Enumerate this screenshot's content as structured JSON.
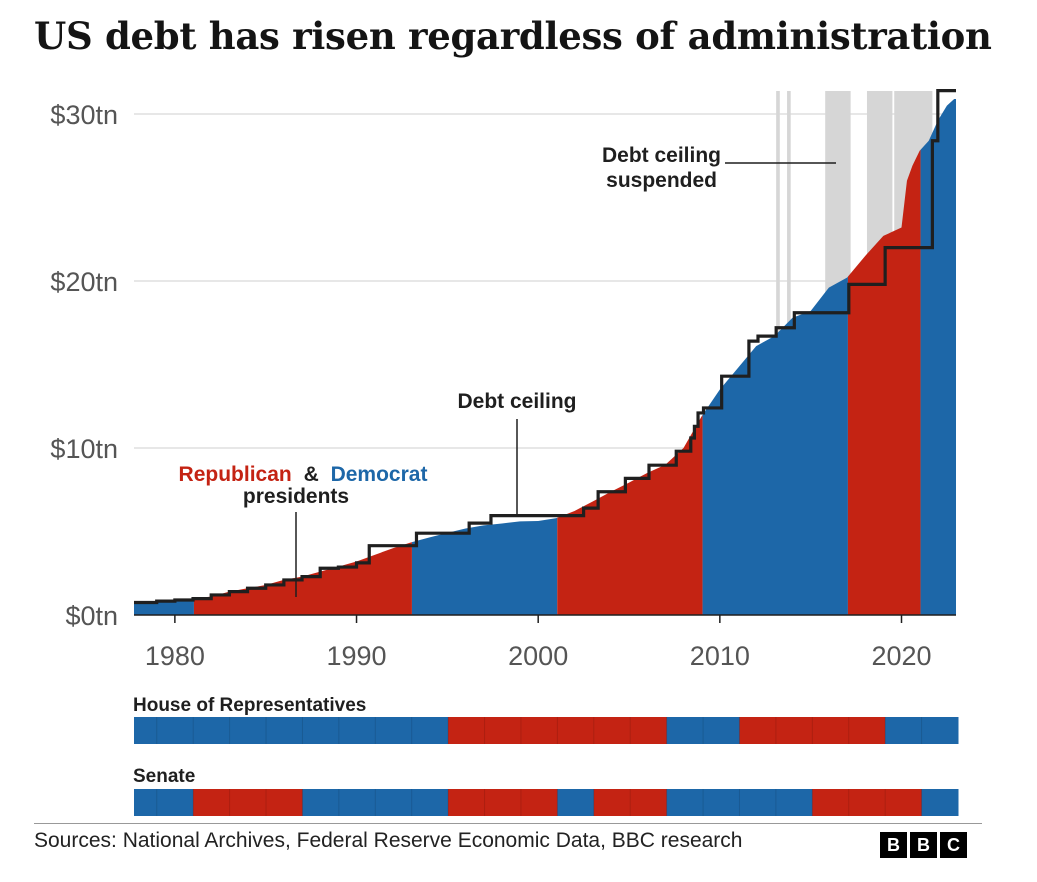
{
  "title": "US debt has risen regardless of administration",
  "source": "Sources: National Archives, Federal Reserve Economic Data, BBC research",
  "logo": [
    "B",
    "B",
    "C"
  ],
  "colors": {
    "republican": "#c42313",
    "democrat": "#1d67a8",
    "ceiling": "#1f1f1f",
    "suspended": "#d6d6d6",
    "grid": "#cfcfcf",
    "axis_text": "#555555"
  },
  "chart_data": {
    "type": "area",
    "title": "US debt has risen regardless of administration",
    "xlabel": "",
    "ylabel": "",
    "xlim": [
      1977.75,
      2023
    ],
    "ylim": [
      0,
      30
    ],
    "x_ticks": [
      {
        "value": 1980,
        "label": "1980"
      },
      {
        "value": 1990,
        "label": "1990"
      },
      {
        "value": 2000,
        "label": "2000"
      },
      {
        "value": 2010,
        "label": "2010"
      },
      {
        "value": 2020,
        "label": "2020"
      }
    ],
    "y_ticks": [
      {
        "value": 0,
        "label": "$0tn"
      },
      {
        "value": 10,
        "label": "$10tn"
      },
      {
        "value": 20,
        "label": "$20tn"
      },
      {
        "value": 30,
        "label": "$30tn"
      }
    ],
    "legend": {
      "republican": "Republican",
      "amp": "&",
      "democrat": "Democrat",
      "line2": "presidents"
    },
    "annotations": {
      "debt_ceiling": "Debt ceiling",
      "suspended_line1": "Debt ceiling",
      "suspended_line2": "suspended"
    },
    "debt": {
      "x": [
        1977.75,
        1979,
        1980,
        1981,
        1982,
        1983,
        1984,
        1985,
        1986,
        1987,
        1988,
        1989,
        1990,
        1991,
        1992,
        1993,
        1994,
        1995,
        1996,
        1997,
        1998,
        1999,
        2000,
        2001,
        2002,
        2003,
        2004,
        2005,
        2006,
        2007,
        2008,
        2009,
        2010,
        2011,
        2012,
        2013,
        2014,
        2015,
        2016,
        2017,
        2018,
        2019,
        2020,
        2020.3,
        2020.6,
        2021,
        2021.5,
        2022,
        2022.5,
        2022.9
      ],
      "y": [
        0.7,
        0.8,
        0.9,
        1.0,
        1.1,
        1.4,
        1.6,
        1.8,
        2.1,
        2.3,
        2.6,
        2.9,
        3.2,
        3.6,
        4.0,
        4.35,
        4.64,
        4.92,
        5.18,
        5.37,
        5.48,
        5.61,
        5.63,
        5.8,
        6.23,
        6.8,
        7.38,
        7.93,
        8.5,
        9.0,
        10.0,
        11.9,
        13.5,
        14.8,
        16.1,
        16.7,
        17.8,
        18.2,
        19.6,
        20.2,
        21.5,
        22.7,
        23.2,
        26.0,
        26.9,
        27.8,
        28.4,
        29.6,
        30.5,
        30.9
      ]
    },
    "presidents": [
      {
        "party": "D",
        "start": 1977.75,
        "end": 1981.05
      },
      {
        "party": "R",
        "start": 1981.05,
        "end": 1993.05
      },
      {
        "party": "D",
        "start": 1993.05,
        "end": 2001.05
      },
      {
        "party": "R",
        "start": 2001.05,
        "end": 2009.05
      },
      {
        "party": "D",
        "start": 2009.05,
        "end": 2017.05
      },
      {
        "party": "R",
        "start": 2017.05,
        "end": 2021.05
      },
      {
        "party": "D",
        "start": 2021.05,
        "end": 2023
      }
    ],
    "debt_ceiling": {
      "x": [
        1977.75,
        1979,
        1980,
        1981,
        1982,
        1983,
        1984,
        1985,
        1986,
        1987,
        1988,
        1989,
        1990,
        1990.7,
        1993.3,
        1996.2,
        1997.4,
        2002.5,
        2003.3,
        2004.8,
        2006.1,
        2007.6,
        2008.4,
        2008.6,
        2008.8,
        2009.1,
        2010.1,
        2011.6,
        2012.1,
        2013.1,
        2014.1,
        2015.1,
        2017.1,
        2019.1,
        2021.7,
        2022,
        2023
      ],
      "y": [
        0.75,
        0.83,
        0.9,
        0.98,
        1.2,
        1.4,
        1.6,
        1.8,
        2.1,
        2.3,
        2.8,
        2.87,
        3.12,
        4.15,
        4.9,
        5.5,
        5.95,
        6.4,
        7.38,
        8.18,
        8.97,
        9.81,
        10.6,
        11.3,
        12.1,
        12.4,
        14.3,
        16.4,
        16.7,
        17.2,
        18.1,
        18.1,
        19.8,
        22.0,
        28.4,
        31.4,
        31.4
      ]
    },
    "suspended_periods": [
      [
        2013.1,
        2013.3
      ],
      [
        2013.7,
        2013.9
      ],
      [
        2015.8,
        2017.2
      ],
      [
        2018.1,
        2019.5
      ],
      [
        2019.6,
        2021.7
      ]
    ],
    "chambers": [
      {
        "name": "House of Representatives",
        "segments": [
          [
            "D",
            1977.75,
            1995
          ],
          [
            "R",
            1995,
            2007
          ],
          [
            "D",
            2007,
            2011
          ],
          [
            "R",
            2011,
            2019
          ],
          [
            "D",
            2019,
            2023
          ]
        ]
      },
      {
        "name": "Senate",
        "segments": [
          [
            "D",
            1977.75,
            1981
          ],
          [
            "R",
            1981,
            1987
          ],
          [
            "D",
            1987,
            1995
          ],
          [
            "R",
            1995,
            2001
          ],
          [
            "D",
            2001,
            2003
          ],
          [
            "R",
            2003,
            2007
          ],
          [
            "D",
            2007,
            2015
          ],
          [
            "R",
            2015,
            2021
          ],
          [
            "D",
            2021,
            2023
          ]
        ]
      }
    ]
  }
}
